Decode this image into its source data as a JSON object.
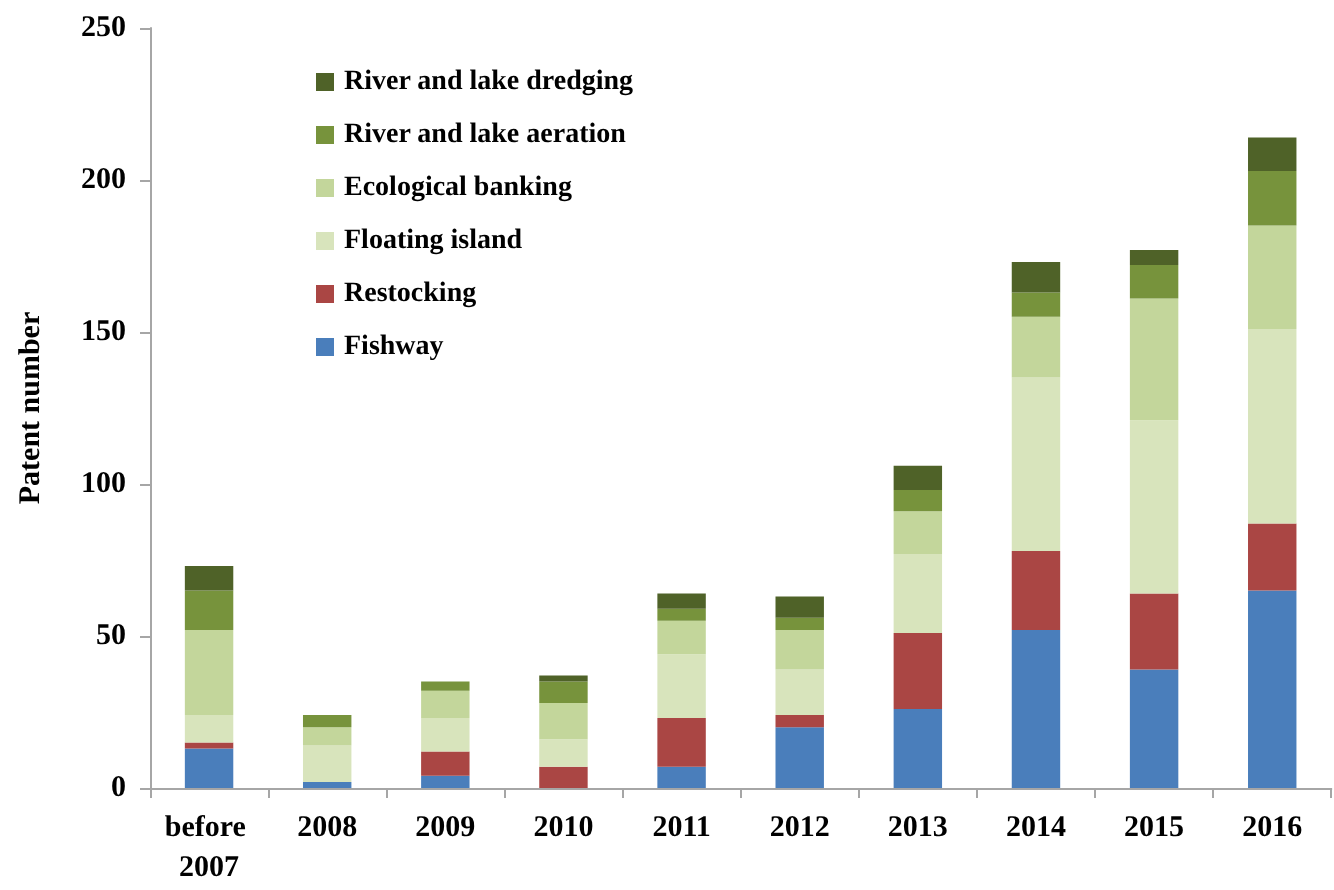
{
  "chart_data": {
    "type": "bar",
    "stacked": true,
    "ylabel": "Patent number",
    "categories": [
      "before 2007",
      "2008",
      "2009",
      "2010",
      "2011",
      "2012",
      "2013",
      "2014",
      "2015",
      "2016"
    ],
    "ylim": [
      0,
      250
    ],
    "yticks": [
      0,
      50,
      100,
      150,
      200,
      250
    ],
    "grid": false,
    "legend": "top left",
    "series": [
      {
        "name": "Fishway",
        "color": "#4a7ebb",
        "values": [
          13,
          2,
          4,
          0,
          7,
          20,
          26,
          52,
          39,
          65
        ]
      },
      {
        "name": "Restocking",
        "color": "#aa4644",
        "values": [
          2,
          0,
          8,
          7,
          16,
          4,
          25,
          26,
          25,
          22
        ]
      },
      {
        "name": "Floating island",
        "color": "#d8e4bc",
        "values": [
          9,
          12,
          11,
          9,
          21,
          15,
          26,
          57,
          57,
          64
        ]
      },
      {
        "name": "Ecological banking",
        "color": "#c3d69b",
        "values": [
          28,
          6,
          9,
          12,
          11,
          13,
          14,
          20,
          40,
          34
        ]
      },
      {
        "name": "River and lake aeration",
        "color": "#77933c",
        "values": [
          13,
          4,
          3,
          7,
          4,
          4,
          7,
          8,
          11,
          18
        ]
      },
      {
        "name": "River and lake dredging",
        "color": "#4f6228",
        "values": [
          8,
          0,
          0,
          2,
          5,
          7,
          8,
          10,
          5,
          11
        ]
      }
    ]
  }
}
